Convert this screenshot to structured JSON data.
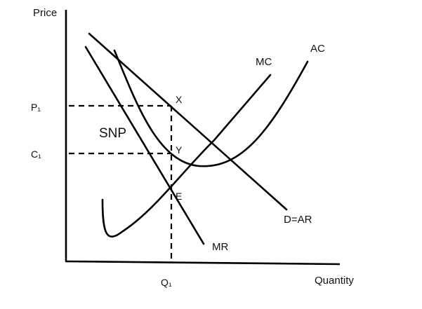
{
  "axes": {
    "y_title": "Price",
    "x_title": "Quantity"
  },
  "curves": {
    "mc": "MC",
    "ac": "AC",
    "demand": "D=AR",
    "mr": "MR"
  },
  "levels": {
    "price": "P₁",
    "cost": "C₁",
    "quantity": "Q₁"
  },
  "points": {
    "x": "X",
    "y": "Y",
    "e": "E"
  },
  "area_label": "SNP"
}
